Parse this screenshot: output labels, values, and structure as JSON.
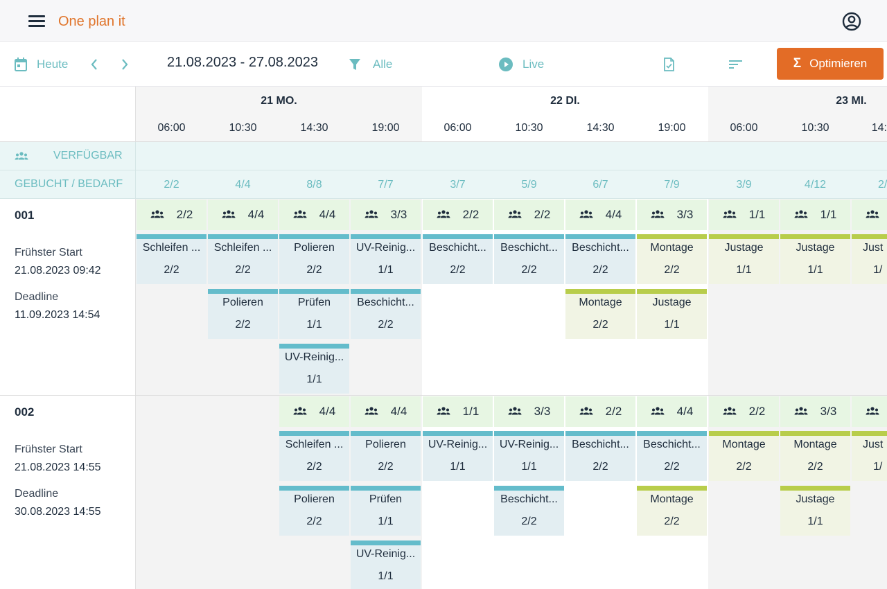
{
  "app": {
    "title": "One plan it"
  },
  "toolbar": {
    "today_label": "Heute",
    "date_range": "21.08.2023 - 27.08.2023",
    "filter_label": "Alle",
    "live_label": "Live",
    "optimize_label": "Optimieren"
  },
  "grid": {
    "days": [
      {
        "label": "21 MO.",
        "times": [
          "06:00",
          "10:30",
          "14:30",
          "19:00"
        ]
      },
      {
        "label": "22 DI.",
        "times": [
          "06:00",
          "10:30",
          "14:30",
          "19:00"
        ]
      },
      {
        "label": "23 MI.",
        "times": [
          "06:00",
          "10:30",
          "14:"
        ]
      }
    ],
    "available_label": "VERFÜGBAR",
    "booked_label": "GEBUCHT / BEDARF",
    "booked_values": [
      "2/2",
      "4/4",
      "8/8",
      "7/7",
      "3/7",
      "5/9",
      "6/7",
      "7/9",
      "3/9",
      "4/12",
      "2/"
    ]
  },
  "orders": [
    {
      "id": "001",
      "earliest_label": "Frühster Start",
      "earliest": "21.08.2023 09:42",
      "deadline_label": "Deadline",
      "deadline": "11.09.2023 14:54",
      "resources": [
        "2/2",
        "4/4",
        "4/4",
        "3/3",
        "2/2",
        "2/2",
        "4/4",
        "3/3",
        "1/1",
        "1/1",
        ""
      ],
      "tasks": [
        [
          "Schleifen ...",
          "2/2"
        ],
        [
          "Schleifen ...",
          "2/2"
        ],
        [
          "Polieren",
          "2/2"
        ],
        [
          "UV-Reinig...",
          "1/1"
        ],
        [
          "Beschicht...",
          "2/2"
        ],
        [
          "Beschicht...",
          "2/2"
        ],
        [
          "Beschicht...",
          "2/2"
        ],
        [
          "Montage",
          "2/2"
        ],
        [
          "Justage",
          "1/1"
        ],
        [
          "Justage",
          "1/1"
        ],
        [
          "Just",
          "1/"
        ],
        [
          "Polieren",
          "2/2"
        ],
        [
          "Prüfen",
          "1/1"
        ],
        [
          "Beschicht...",
          "2/2"
        ],
        [
          "Montage",
          "2/2"
        ],
        [
          "Justage",
          "1/1"
        ],
        [
          "UV-Reinig...",
          "1/1"
        ]
      ]
    },
    {
      "id": "002",
      "earliest_label": "Frühster Start",
      "earliest": "21.08.2023 14:55",
      "deadline_label": "Deadline",
      "deadline": "30.08.2023 14:55",
      "resources": [
        "4/4",
        "4/4",
        "1/1",
        "3/3",
        "2/2",
        "4/4",
        "2/2",
        "3/3",
        ""
      ],
      "tasks": [
        [
          "Schleifen ...",
          "2/2"
        ],
        [
          "Polieren",
          "2/2"
        ],
        [
          "UV-Reinig...",
          "1/1"
        ],
        [
          "UV-Reinig...",
          "1/1"
        ],
        [
          "Beschicht...",
          "2/2"
        ],
        [
          "Beschicht...",
          "2/2"
        ],
        [
          "Montage",
          "2/2"
        ],
        [
          "Montage",
          "2/2"
        ],
        [
          "Just",
          "1/"
        ],
        [
          "Polieren",
          "2/2"
        ],
        [
          "Prüfen",
          "1/1"
        ],
        [
          "Beschicht...",
          "2/2"
        ],
        [
          "Montage",
          "2/2"
        ],
        [
          "Justage",
          "1/1"
        ],
        [
          "UV-Reinig...",
          "1/1"
        ]
      ]
    }
  ],
  "colors": {
    "accent": "#e36c26",
    "teal": "#6bbcc0",
    "task_blue": "#64bccb",
    "task_green": "#b8cd4b"
  }
}
